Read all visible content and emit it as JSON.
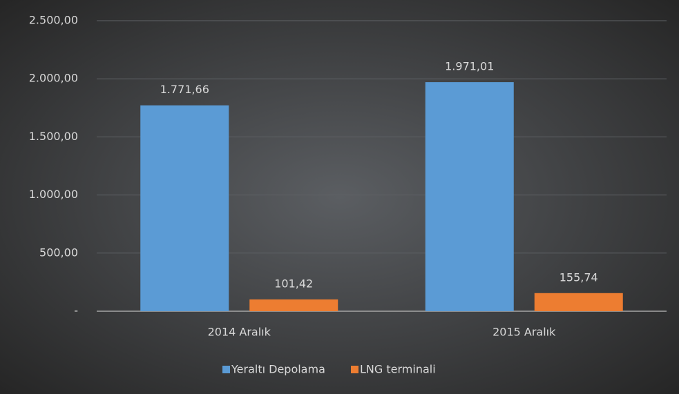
{
  "chart_data": {
    "type": "bar",
    "categories": [
      "2014 Aralık",
      "2015 Aralık"
    ],
    "series": [
      {
        "name": "Yeraltı Depolama",
        "color": "#5b9bd5",
        "values": [
          1771.66,
          1971.01
        ],
        "value_labels": [
          "1.771,66",
          "1.971,01"
        ]
      },
      {
        "name": "LNG terminali",
        "color": "#ed7d31",
        "values": [
          101.42,
          155.74
        ],
        "value_labels": [
          "101,42",
          "155,74"
        ]
      }
    ],
    "ylim": [
      0,
      2500
    ],
    "yticks": [
      {
        "value": 0,
        "label": "-"
      },
      {
        "value": 500,
        "label": "500,00"
      },
      {
        "value": 1000,
        "label": "1.000,00"
      },
      {
        "value": 1500,
        "label": "1.500,00"
      },
      {
        "value": 2000,
        "label": "2.000,00"
      },
      {
        "value": 2500,
        "label": "2.500,00"
      }
    ],
    "grid": true,
    "legend": "bottom"
  }
}
